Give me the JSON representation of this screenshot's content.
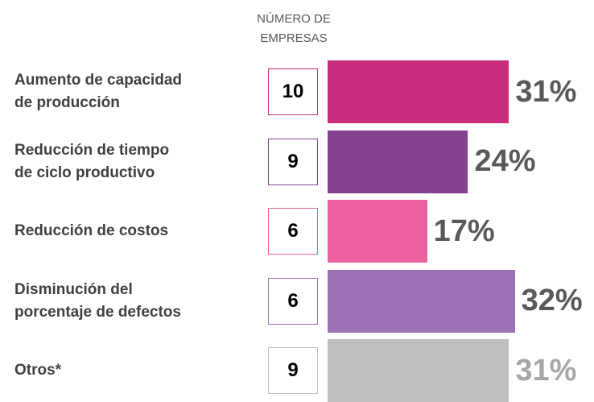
{
  "chart_data": {
    "type": "bar",
    "column_header": "NÚMERO DE EMPRESAS",
    "categories": [
      "Aumento de capacidad\nde producción",
      "Reducción de tiempo\nde ciclo productivo",
      "Reducción de costos",
      "Disminución del\nporcentaje de defectos",
      "Otros*"
    ],
    "counts": [
      10,
      9,
      6,
      6,
      9
    ],
    "values": [
      31,
      24,
      17,
      32,
      31
    ],
    "value_labels": [
      "31%",
      "24%",
      "17%",
      "32%",
      "31%"
    ],
    "colors": [
      "#c92d7b",
      "#84418f",
      "#ec5fa0",
      "#9b72b4",
      "#bfbfbf"
    ],
    "value_label_colors": [
      "#595959",
      "#595959",
      "#595959",
      "#595959",
      "#a6a6a6"
    ]
  }
}
